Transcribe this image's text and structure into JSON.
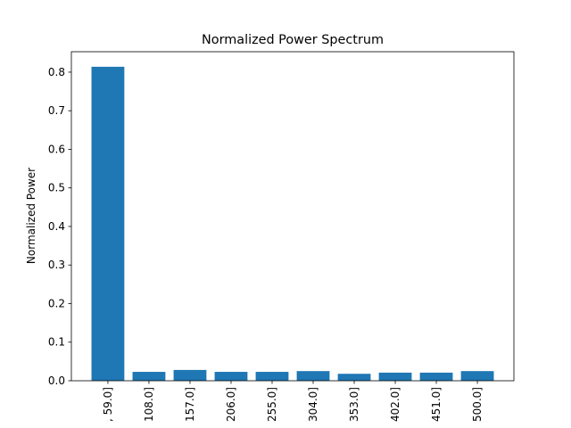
{
  "chart_data": {
    "type": "bar",
    "title": "Normalized Power Spectrum",
    "ylabel": "Normalized Power",
    "categories": [
      ", 59.0]",
      "108.0]",
      "157.0]",
      "206.0]",
      "255.0]",
      "304.0]",
      "353.0]",
      "402.0]",
      "451.0]",
      "500.0]"
    ],
    "values": [
      0.814,
      0.023,
      0.028,
      0.023,
      0.023,
      0.025,
      0.018,
      0.021,
      0.021,
      0.025
    ],
    "color": "#1f77b4",
    "ylim": [
      0,
      0.853
    ],
    "yticks": [
      0.0,
      0.1,
      0.2,
      0.3,
      0.4,
      0.5,
      0.6,
      0.7,
      0.8
    ]
  }
}
